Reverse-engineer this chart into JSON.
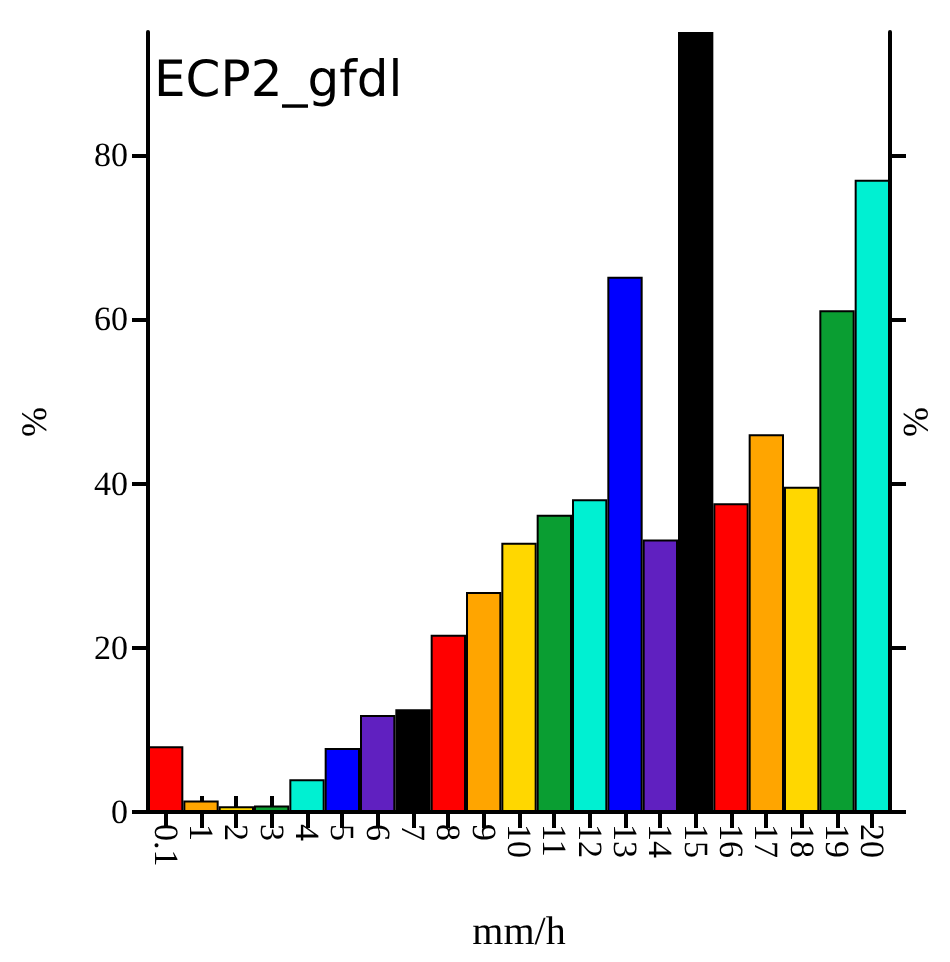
{
  "chart_data": {
    "type": "bar",
    "title": "ECP2_gfdl",
    "xlabel": "mm/h",
    "ylabel": "%",
    "y2label": "%",
    "categories": [
      "0.1",
      "1",
      "2",
      "3",
      "4",
      "5",
      "6",
      "7",
      "8",
      "9",
      "10",
      "11",
      "12",
      "13",
      "14",
      "15",
      "16",
      "17",
      "18",
      "19",
      "20"
    ],
    "values": [
      8,
      1.4,
      0.7,
      0.8,
      4,
      7.8,
      11.8,
      12.5,
      21.6,
      26.8,
      32.8,
      36.2,
      38.1,
      65.2,
      33.2,
      95,
      37.6,
      46,
      39.6,
      61.1,
      77
    ],
    "colors": [
      "#ff0000",
      "#ffa500",
      "#ffd700",
      "#0a9e32",
      "#00f0d2",
      "#0000ff",
      "#6020c0",
      "#000000",
      "#ff0000",
      "#ffa500",
      "#ffd700",
      "#0a9e32",
      "#00f0d2",
      "#0000ff",
      "#6020c0",
      "#000000",
      "#ff0000",
      "#ffa500",
      "#ffd700",
      "#0a9e32",
      "#00f0d2"
    ],
    "ylim": [
      0,
      95
    ],
    "yticks": [
      0,
      20,
      40,
      60,
      80
    ],
    "grid": false
  }
}
